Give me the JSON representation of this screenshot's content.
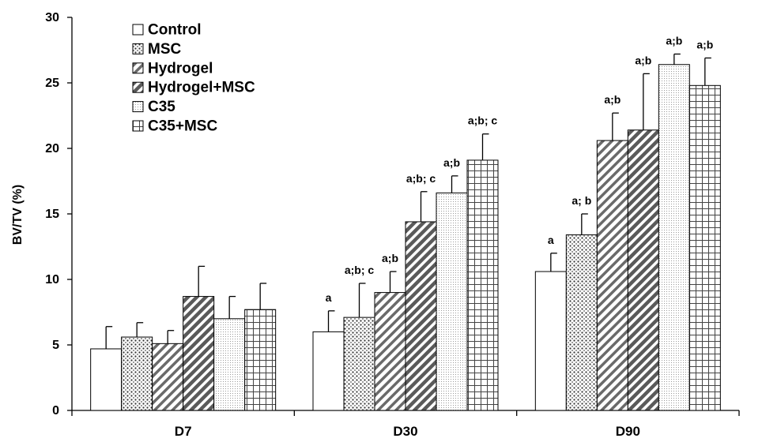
{
  "chart_data": {
    "type": "bar",
    "title": "",
    "xlabel": "",
    "ylabel": "BV/TV (%)",
    "ylim": [
      0,
      30
    ],
    "yticks": [
      "0",
      "5",
      "10",
      "15",
      "20",
      "25",
      "30"
    ],
    "grid": false,
    "legend_position": "top-left",
    "categories": [
      "D7",
      "D30",
      "D90"
    ],
    "series": [
      {
        "name": "Control",
        "pattern": "solid-white",
        "values": [
          4.7,
          6.0,
          10.6
        ],
        "errors": [
          1.7,
          1.6,
          1.4
        ],
        "labels": [
          "",
          "a",
          "a"
        ]
      },
      {
        "name": "MSC",
        "pattern": "dots",
        "values": [
          5.6,
          7.1,
          13.4
        ],
        "errors": [
          1.1,
          2.6,
          1.6
        ],
        "labels": [
          "",
          "a;b; c",
          "a; b"
        ]
      },
      {
        "name": "Hydrogel",
        "pattern": "diagonal",
        "values": [
          5.1,
          9.0,
          20.6
        ],
        "errors": [
          1.0,
          1.6,
          2.1
        ],
        "labels": [
          "",
          "a;b",
          "a;b"
        ]
      },
      {
        "name": "Hydrogel+MSC",
        "pattern": "diagonal-dense",
        "values": [
          8.7,
          14.4,
          21.4
        ],
        "errors": [
          2.3,
          2.3,
          4.3
        ],
        "labels": [
          "",
          "a;b; c",
          "a;b"
        ]
      },
      {
        "name": "C35",
        "pattern": "fine-dots",
        "values": [
          7.0,
          16.6,
          26.4
        ],
        "errors": [
          1.7,
          1.3,
          0.8
        ],
        "labels": [
          "",
          "a;b",
          "a;b"
        ]
      },
      {
        "name": "C35+MSC",
        "pattern": "grid",
        "values": [
          7.7,
          19.1,
          24.8
        ],
        "errors": [
          2.0,
          2.0,
          2.1
        ],
        "labels": [
          "",
          "a;b; c",
          "a;b"
        ]
      }
    ],
    "colors": {
      "axis": "#000000",
      "bar_stroke": "#000000",
      "bar_fill": "#ffffff",
      "hatch": "#555555"
    }
  }
}
